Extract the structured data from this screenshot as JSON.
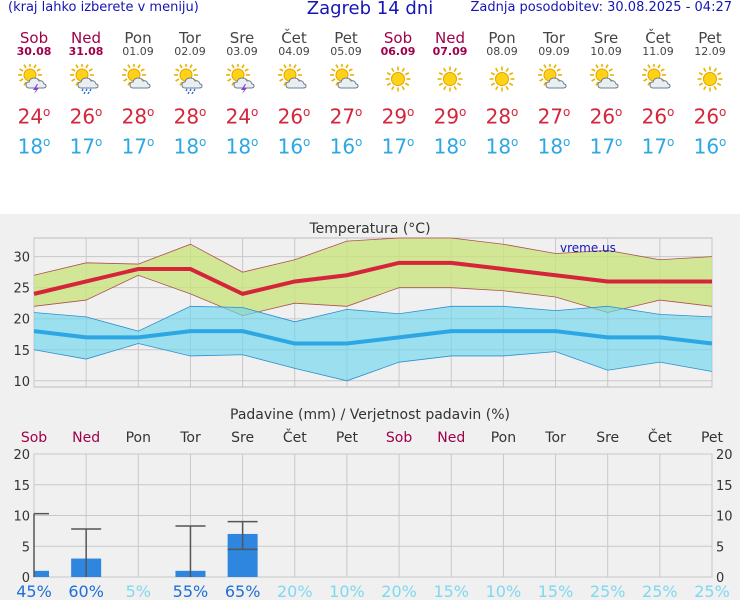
{
  "header": {
    "menu_hint": "(kraj lahko izberete v meniju)",
    "title": "Zagreb 14 dni",
    "updated": "Zadnja posodobitev: 30.08.2025 - 04:27"
  },
  "colors": {
    "max": "#d4253a",
    "min": "#2da7e4",
    "weekend": "#a0004a",
    "link": "#1515b5"
  },
  "days": [
    {
      "name": "Sob",
      "date": "30.08",
      "weekend": true,
      "icon": "sun-cloud-storm-icon",
      "max": "24",
      "min": "18"
    },
    {
      "name": "Ned",
      "date": "31.08",
      "weekend": true,
      "icon": "sun-cloud-rain-icon",
      "max": "26",
      "min": "17"
    },
    {
      "name": "Pon",
      "date": "01.09",
      "weekend": false,
      "icon": "sun-cloud-icon",
      "max": "28",
      "min": "17"
    },
    {
      "name": "Tor",
      "date": "02.09",
      "weekend": false,
      "icon": "sun-cloud-rain-icon",
      "max": "28",
      "min": "18"
    },
    {
      "name": "Sre",
      "date": "03.09",
      "weekend": false,
      "icon": "sun-cloud-storm-icon",
      "max": "24",
      "min": "18"
    },
    {
      "name": "Čet",
      "date": "04.09",
      "weekend": false,
      "icon": "sun-cloud-icon",
      "max": "26",
      "min": "16"
    },
    {
      "name": "Pet",
      "date": "05.09",
      "weekend": false,
      "icon": "sun-cloud-icon",
      "max": "27",
      "min": "16"
    },
    {
      "name": "Sob",
      "date": "06.09",
      "weekend": true,
      "icon": "sun-icon",
      "max": "29",
      "min": "17"
    },
    {
      "name": "Ned",
      "date": "07.09",
      "weekend": true,
      "icon": "sun-icon",
      "max": "29",
      "min": "18"
    },
    {
      "name": "Pon",
      "date": "08.09",
      "weekend": false,
      "icon": "sun-icon",
      "max": "28",
      "min": "18"
    },
    {
      "name": "Tor",
      "date": "09.09",
      "weekend": false,
      "icon": "sun-cloud-icon",
      "max": "27",
      "min": "18"
    },
    {
      "name": "Sre",
      "date": "10.09",
      "weekend": false,
      "icon": "sun-cloud-icon",
      "max": "26",
      "min": "17"
    },
    {
      "name": "Čet",
      "date": "11.09",
      "weekend": false,
      "icon": "sun-cloud-icon",
      "max": "26",
      "min": "17"
    },
    {
      "name": "Pet",
      "date": "12.09",
      "weekend": false,
      "icon": "sun-icon",
      "max": "26",
      "min": "16"
    }
  ],
  "chart_data": [
    {
      "type": "area",
      "title": "Temperatura (°C)",
      "watermark": "vreme.us",
      "ylim": [
        9,
        33
      ],
      "yticks": [
        "10",
        "15",
        "20",
        "25",
        "30"
      ],
      "grid": true,
      "series": [
        {
          "name": "max",
          "color": "#d4253a",
          "values": [
            24,
            26,
            28,
            28,
            24,
            26,
            27,
            29,
            29,
            28,
            27,
            26,
            26,
            26
          ]
        },
        {
          "name": "max_upper",
          "color": "#d8ec9a",
          "values": [
            27,
            29,
            28.8,
            32,
            27.5,
            29.5,
            32.5,
            33,
            33,
            32,
            30.5,
            31,
            29.5,
            30
          ]
        },
        {
          "name": "max_lower",
          "color": "#d8ec9a",
          "values": [
            22,
            23,
            27,
            24,
            20.5,
            22.5,
            22,
            25,
            25,
            24.5,
            23.5,
            21,
            23,
            22
          ]
        },
        {
          "name": "min",
          "color": "#2da7e4",
          "values": [
            18,
            17,
            17,
            18,
            18,
            16,
            16,
            17,
            18,
            18,
            18,
            17,
            17,
            16
          ]
        },
        {
          "name": "min_upper",
          "color": "#9fdff0",
          "values": [
            21,
            20.3,
            18,
            22,
            21.8,
            19.5,
            21.5,
            20.8,
            22,
            22,
            21.3,
            22,
            20.7,
            20.3
          ]
        },
        {
          "name": "min_lower",
          "color": "#9fdff0",
          "values": [
            15,
            13.5,
            16,
            14,
            14.2,
            12,
            10,
            13,
            14,
            14,
            14.7,
            11.7,
            13,
            11.5
          ]
        }
      ]
    },
    {
      "type": "bar",
      "title": "Padavine (mm) / Verjetnost padavin (%)",
      "ylim": [
        0,
        20
      ],
      "yticks": [
        "0",
        "5",
        "10",
        "15",
        "20"
      ],
      "categories": [
        "Sob",
        "Ned",
        "Pon",
        "Tor",
        "Sre",
        "Čet",
        "Pet",
        "Sob",
        "Ned",
        "Pon",
        "Tor",
        "Sre",
        "Čet",
        "Pet"
      ],
      "weekend": [
        true,
        true,
        false,
        false,
        false,
        false,
        false,
        true,
        true,
        false,
        false,
        false,
        false,
        false
      ],
      "values": [
        1,
        3,
        0,
        1,
        7,
        0,
        0,
        0,
        0,
        0,
        0,
        0,
        0,
        0
      ],
      "err_low": [
        0,
        0,
        0,
        0,
        4.5,
        0,
        0,
        0,
        0,
        0,
        0,
        0,
        0,
        0
      ],
      "err_high": [
        10.3,
        7.8,
        0,
        8.3,
        9,
        0,
        0,
        0,
        0,
        0,
        0,
        0,
        0,
        0
      ],
      "probability": [
        "45%",
        "60%",
        "5%",
        "55%",
        "65%",
        "20%",
        "10%",
        "20%",
        "15%",
        "10%",
        "15%",
        "25%",
        "25%",
        "25%"
      ],
      "prob_color": [
        "#1e6fd6",
        "#1e6fd6",
        "#7fd8f0",
        "#1e6fd6",
        "#1e6fd6",
        "#7fd8f0",
        "#7fd8f0",
        "#7fd8f0",
        "#7fd8f0",
        "#7fd8f0",
        "#7fd8f0",
        "#7fd8f0",
        "#7fd8f0",
        "#7fd8f0"
      ]
    }
  ]
}
